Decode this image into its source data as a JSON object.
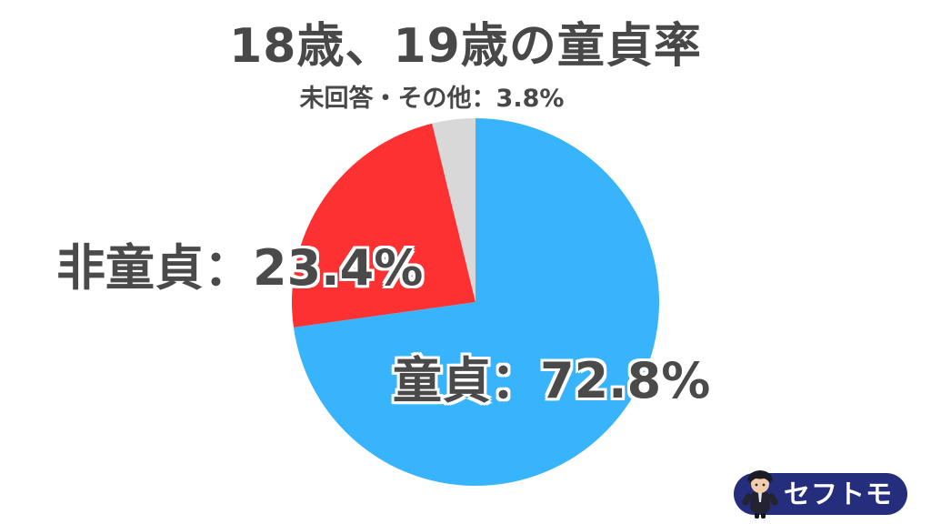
{
  "title": "18歳、19歳の童貞率",
  "chart_data": {
    "type": "pie",
    "title": "18歳、19歳の童貞率",
    "slices": [
      {
        "label": "童貞",
        "value": 72.8,
        "display": "童貞：72.8%",
        "color": "#38b4fc"
      },
      {
        "label": "非童貞",
        "value": 23.4,
        "display": "非童貞：23.4%",
        "color": "#fd3131"
      },
      {
        "label": "未回答・その他",
        "value": 3.8,
        "display": "未回答・その他：3.8%",
        "color": "#d8d8d8"
      }
    ],
    "start_angle": "12-oclock",
    "direction": "clockwise",
    "legend_position": "direct-labels-on-chart",
    "background": "#ffffff",
    "text_color": "#484848"
  },
  "logo": {
    "text": "セフトモ",
    "bg_color": "#252e7d",
    "mascot": "chibi-character-icon"
  }
}
